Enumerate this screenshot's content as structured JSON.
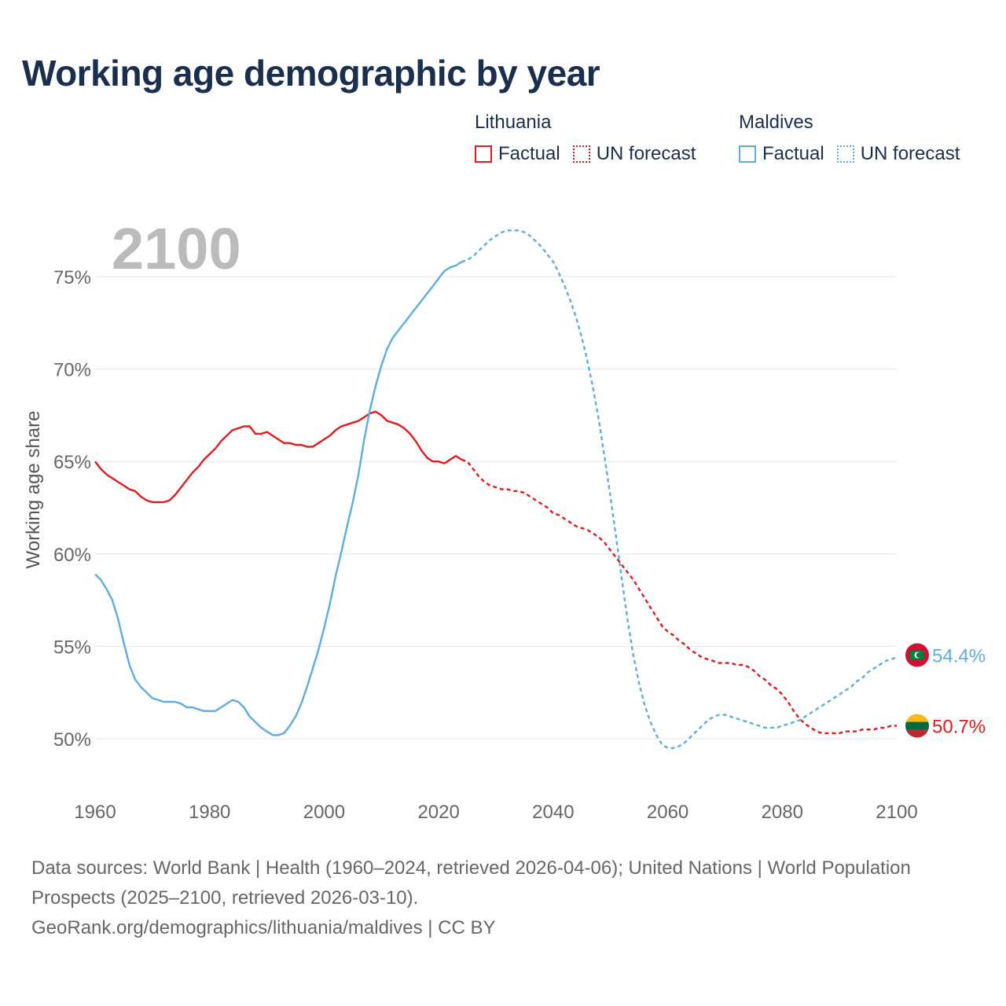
{
  "title": "Working age demographic by year",
  "legend": {
    "groups": [
      {
        "name": "Lithuania",
        "color": "#e31a1c",
        "items": [
          {
            "label": "Factual",
            "style": "solid"
          },
          {
            "label": "UN forecast",
            "style": "dotted"
          }
        ]
      },
      {
        "name": "Maldives",
        "color": "#5dade2",
        "items": [
          {
            "label": "Factual",
            "style": "solid"
          },
          {
            "label": "UN forecast",
            "style": "dotted"
          }
        ]
      }
    ]
  },
  "year_watermark": "2100",
  "footer": {
    "sources": "Data sources: World Bank | Health (1960–2024, retrieved 2026-04-06); United Nations | World Population Prospects (2025–2100, retrieved 2026-03-10).",
    "url": "GeoRank.org/demographics/lithuania/maldives | CC BY"
  },
  "chart_data": {
    "type": "line",
    "title": "Working age demographic by year",
    "xlabel": "",
    "ylabel": "Working age share",
    "xlim": [
      1960,
      2100
    ],
    "ylim": [
      47.5,
      77.5
    ],
    "xticks": [
      1960,
      1980,
      2000,
      2020,
      2040,
      2060,
      2080,
      2100
    ],
    "yticks": [
      50,
      55,
      60,
      65,
      70,
      75
    ],
    "ytick_labels": [
      "50%",
      "55%",
      "60%",
      "65%",
      "70%",
      "75%"
    ],
    "grid": "horizontal",
    "forecast_start": 2025,
    "series": [
      {
        "name": "Lithuania",
        "color": "#e31a1c",
        "end_label": "50.7%",
        "flag": "lithuania",
        "points": [
          [
            1960,
            65.0
          ],
          [
            1961,
            64.6
          ],
          [
            1962,
            64.3
          ],
          [
            1963,
            64.1
          ],
          [
            1964,
            63.9
          ],
          [
            1965,
            63.7
          ],
          [
            1966,
            63.5
          ],
          [
            1967,
            63.4
          ],
          [
            1968,
            63.1
          ],
          [
            1969,
            62.9
          ],
          [
            1970,
            62.8
          ],
          [
            1971,
            62.8
          ],
          [
            1972,
            62.8
          ],
          [
            1973,
            62.9
          ],
          [
            1974,
            63.2
          ],
          [
            1975,
            63.6
          ],
          [
            1976,
            64.0
          ],
          [
            1977,
            64.4
          ],
          [
            1978,
            64.7
          ],
          [
            1979,
            65.1
          ],
          [
            1980,
            65.4
          ],
          [
            1981,
            65.7
          ],
          [
            1982,
            66.1
          ],
          [
            1983,
            66.4
          ],
          [
            1984,
            66.7
          ],
          [
            1985,
            66.8
          ],
          [
            1986,
            66.9
          ],
          [
            1987,
            66.9
          ],
          [
            1988,
            66.5
          ],
          [
            1989,
            66.5
          ],
          [
            1990,
            66.6
          ],
          [
            1991,
            66.4
          ],
          [
            1992,
            66.2
          ],
          [
            1993,
            66.0
          ],
          [
            1994,
            66.0
          ],
          [
            1995,
            65.9
          ],
          [
            1996,
            65.9
          ],
          [
            1997,
            65.8
          ],
          [
            1998,
            65.8
          ],
          [
            1999,
            66.0
          ],
          [
            2000,
            66.2
          ],
          [
            2001,
            66.4
          ],
          [
            2002,
            66.7
          ],
          [
            2003,
            66.9
          ],
          [
            2004,
            67.0
          ],
          [
            2005,
            67.1
          ],
          [
            2006,
            67.2
          ],
          [
            2007,
            67.4
          ],
          [
            2008,
            67.6
          ],
          [
            2009,
            67.7
          ],
          [
            2010,
            67.5
          ],
          [
            2011,
            67.2
          ],
          [
            2012,
            67.1
          ],
          [
            2013,
            67.0
          ],
          [
            2014,
            66.8
          ],
          [
            2015,
            66.5
          ],
          [
            2016,
            66.1
          ],
          [
            2017,
            65.6
          ],
          [
            2018,
            65.2
          ],
          [
            2019,
            65.0
          ],
          [
            2020,
            65.0
          ],
          [
            2021,
            64.9
          ],
          [
            2022,
            65.1
          ],
          [
            2023,
            65.3
          ],
          [
            2024,
            65.1
          ],
          [
            2025,
            65.0
          ],
          [
            2026,
            64.6
          ],
          [
            2027,
            64.2
          ],
          [
            2028,
            63.9
          ],
          [
            2029,
            63.7
          ],
          [
            2030,
            63.6
          ],
          [
            2031,
            63.5
          ],
          [
            2032,
            63.5
          ],
          [
            2033,
            63.4
          ],
          [
            2034,
            63.4
          ],
          [
            2035,
            63.3
          ],
          [
            2036,
            63.1
          ],
          [
            2037,
            62.9
          ],
          [
            2038,
            62.7
          ],
          [
            2039,
            62.5
          ],
          [
            2040,
            62.2
          ],
          [
            2041,
            62.1
          ],
          [
            2042,
            61.9
          ],
          [
            2043,
            61.7
          ],
          [
            2044,
            61.5
          ],
          [
            2045,
            61.4
          ],
          [
            2046,
            61.3
          ],
          [
            2047,
            61.1
          ],
          [
            2048,
            60.9
          ],
          [
            2049,
            60.6
          ],
          [
            2050,
            60.2
          ],
          [
            2051,
            59.8
          ],
          [
            2052,
            59.4
          ],
          [
            2053,
            59.0
          ],
          [
            2054,
            58.6
          ],
          [
            2055,
            58.1
          ],
          [
            2056,
            57.6
          ],
          [
            2057,
            57.1
          ],
          [
            2058,
            56.6
          ],
          [
            2059,
            56.1
          ],
          [
            2060,
            55.8
          ],
          [
            2061,
            55.6
          ],
          [
            2062,
            55.3
          ],
          [
            2063,
            55.1
          ],
          [
            2064,
            54.8
          ],
          [
            2065,
            54.6
          ],
          [
            2066,
            54.4
          ],
          [
            2067,
            54.3
          ],
          [
            2068,
            54.2
          ],
          [
            2069,
            54.1
          ],
          [
            2070,
            54.1
          ],
          [
            2071,
            54.1
          ],
          [
            2072,
            54.0
          ],
          [
            2073,
            54.0
          ],
          [
            2074,
            53.9
          ],
          [
            2075,
            53.7
          ],
          [
            2076,
            53.4
          ],
          [
            2077,
            53.2
          ],
          [
            2078,
            52.9
          ],
          [
            2079,
            52.7
          ],
          [
            2080,
            52.4
          ],
          [
            2081,
            52.0
          ],
          [
            2082,
            51.5
          ],
          [
            2083,
            51.1
          ],
          [
            2084,
            50.8
          ],
          [
            2085,
            50.6
          ],
          [
            2086,
            50.4
          ],
          [
            2087,
            50.3
          ],
          [
            2088,
            50.3
          ],
          [
            2089,
            50.3
          ],
          [
            2090,
            50.3
          ],
          [
            2091,
            50.4
          ],
          [
            2092,
            50.4
          ],
          [
            2093,
            50.4
          ],
          [
            2094,
            50.5
          ],
          [
            2095,
            50.5
          ],
          [
            2096,
            50.5
          ],
          [
            2097,
            50.6
          ],
          [
            2098,
            50.6
          ],
          [
            2099,
            50.7
          ],
          [
            2100,
            50.7
          ]
        ]
      },
      {
        "name": "Maldives",
        "color": "#5dade2",
        "end_label": "54.4%",
        "flag": "maldives",
        "points": [
          [
            1960,
            58.9
          ],
          [
            1961,
            58.6
          ],
          [
            1962,
            58.1
          ],
          [
            1963,
            57.5
          ],
          [
            1964,
            56.5
          ],
          [
            1965,
            55.2
          ],
          [
            1966,
            54.0
          ],
          [
            1967,
            53.2
          ],
          [
            1968,
            52.8
          ],
          [
            1969,
            52.5
          ],
          [
            1970,
            52.2
          ],
          [
            1971,
            52.1
          ],
          [
            1972,
            52.0
          ],
          [
            1973,
            52.0
          ],
          [
            1974,
            52.0
          ],
          [
            1975,
            51.9
          ],
          [
            1976,
            51.7
          ],
          [
            1977,
            51.7
          ],
          [
            1978,
            51.6
          ],
          [
            1979,
            51.5
          ],
          [
            1980,
            51.5
          ],
          [
            1981,
            51.5
          ],
          [
            1982,
            51.7
          ],
          [
            1983,
            51.9
          ],
          [
            1984,
            52.1
          ],
          [
            1985,
            52.0
          ],
          [
            1986,
            51.7
          ],
          [
            1987,
            51.2
          ],
          [
            1988,
            50.9
          ],
          [
            1989,
            50.6
          ],
          [
            1990,
            50.4
          ],
          [
            1991,
            50.2
          ],
          [
            1992,
            50.2
          ],
          [
            1993,
            50.3
          ],
          [
            1994,
            50.7
          ],
          [
            1995,
            51.2
          ],
          [
            1996,
            51.9
          ],
          [
            1997,
            52.8
          ],
          [
            1998,
            53.8
          ],
          [
            1999,
            54.8
          ],
          [
            2000,
            56.0
          ],
          [
            2001,
            57.3
          ],
          [
            2002,
            58.8
          ],
          [
            2003,
            60.1
          ],
          [
            2004,
            61.5
          ],
          [
            2005,
            62.8
          ],
          [
            2006,
            64.3
          ],
          [
            2007,
            66.2
          ],
          [
            2008,
            67.8
          ],
          [
            2009,
            69.1
          ],
          [
            2010,
            70.2
          ],
          [
            2011,
            71.1
          ],
          [
            2012,
            71.7
          ],
          [
            2013,
            72.1
          ],
          [
            2014,
            72.5
          ],
          [
            2015,
            72.9
          ],
          [
            2016,
            73.3
          ],
          [
            2017,
            73.7
          ],
          [
            2018,
            74.1
          ],
          [
            2019,
            74.5
          ],
          [
            2020,
            74.9
          ],
          [
            2021,
            75.3
          ],
          [
            2022,
            75.5
          ],
          [
            2023,
            75.6
          ],
          [
            2024,
            75.8
          ],
          [
            2025,
            75.9
          ],
          [
            2026,
            76.1
          ],
          [
            2027,
            76.4
          ],
          [
            2028,
            76.7
          ],
          [
            2029,
            77.0
          ],
          [
            2030,
            77.2
          ],
          [
            2031,
            77.4
          ],
          [
            2032,
            77.5
          ],
          [
            2033,
            77.5
          ],
          [
            2034,
            77.5
          ],
          [
            2035,
            77.4
          ],
          [
            2036,
            77.2
          ],
          [
            2037,
            76.9
          ],
          [
            2038,
            76.6
          ],
          [
            2039,
            76.2
          ],
          [
            2040,
            75.8
          ],
          [
            2041,
            75.2
          ],
          [
            2042,
            74.5
          ],
          [
            2043,
            73.7
          ],
          [
            2044,
            72.8
          ],
          [
            2045,
            71.7
          ],
          [
            2046,
            70.4
          ],
          [
            2047,
            68.9
          ],
          [
            2048,
            67.2
          ],
          [
            2049,
            65.2
          ],
          [
            2050,
            63.1
          ],
          [
            2051,
            60.9
          ],
          [
            2052,
            58.6
          ],
          [
            2053,
            56.4
          ],
          [
            2054,
            54.5
          ],
          [
            2055,
            53.0
          ],
          [
            2056,
            51.8
          ],
          [
            2057,
            50.9
          ],
          [
            2058,
            50.2
          ],
          [
            2059,
            49.7
          ],
          [
            2060,
            49.5
          ],
          [
            2061,
            49.5
          ],
          [
            2062,
            49.6
          ],
          [
            2063,
            49.8
          ],
          [
            2064,
            50.1
          ],
          [
            2065,
            50.4
          ],
          [
            2066,
            50.7
          ],
          [
            2067,
            51.0
          ],
          [
            2068,
            51.2
          ],
          [
            2069,
            51.3
          ],
          [
            2070,
            51.3
          ],
          [
            2071,
            51.2
          ],
          [
            2072,
            51.1
          ],
          [
            2073,
            51.0
          ],
          [
            2074,
            50.9
          ],
          [
            2075,
            50.8
          ],
          [
            2076,
            50.7
          ],
          [
            2077,
            50.6
          ],
          [
            2078,
            50.6
          ],
          [
            2079,
            50.6
          ],
          [
            2080,
            50.7
          ],
          [
            2081,
            50.8
          ],
          [
            2082,
            50.9
          ],
          [
            2083,
            51.0
          ],
          [
            2084,
            51.2
          ],
          [
            2085,
            51.4
          ],
          [
            2086,
            51.6
          ],
          [
            2087,
            51.8
          ],
          [
            2088,
            52.0
          ],
          [
            2089,
            52.2
          ],
          [
            2090,
            52.4
          ],
          [
            2091,
            52.6
          ],
          [
            2092,
            52.8
          ],
          [
            2093,
            53.1
          ],
          [
            2094,
            53.3
          ],
          [
            2095,
            53.6
          ],
          [
            2096,
            53.8
          ],
          [
            2097,
            54.0
          ],
          [
            2098,
            54.2
          ],
          [
            2099,
            54.3
          ],
          [
            2100,
            54.4
          ]
        ]
      }
    ]
  }
}
